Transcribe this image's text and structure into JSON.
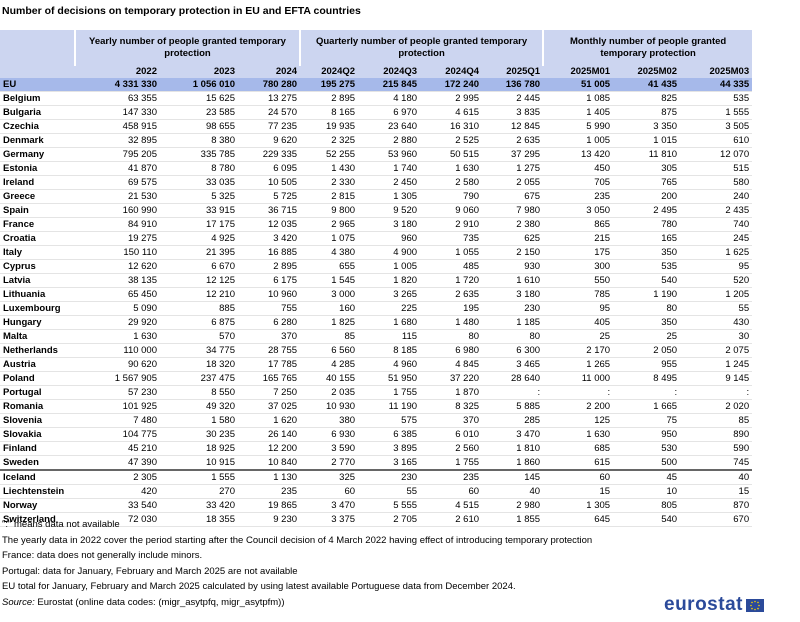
{
  "title": "Number of decisions on temporary protection in EU and EFTA countries",
  "table": {
    "groups": [
      "Yearly number of people granted temporary protection",
      "Quarterly number of people granted temporary protection",
      "Monthly number of people granted temporary protection"
    ],
    "columns": [
      "2022",
      "2023",
      "2024",
      "2024Q2",
      "2024Q3",
      "2024Q4",
      "2025Q1",
      "2025M01",
      "2025M02",
      "2025M03"
    ],
    "rows": [
      {
        "label": "EU",
        "cells": [
          "4 331 330",
          "1 056 010",
          "780 280",
          "195 275",
          "215 845",
          "172 240",
          "136 780",
          "51 005",
          "41 435",
          "44 335"
        ]
      },
      {
        "label": "Belgium",
        "cells": [
          "63 355",
          "15 625",
          "13 275",
          "2 895",
          "4 180",
          "2 995",
          "2 445",
          "1 085",
          "825",
          "535"
        ]
      },
      {
        "label": "Bulgaria",
        "cells": [
          "147 330",
          "23 585",
          "24 570",
          "8 165",
          "6 970",
          "4 615",
          "3 835",
          "1 405",
          "875",
          "1 555"
        ]
      },
      {
        "label": "Czechia",
        "cells": [
          "458 915",
          "98 655",
          "77 235",
          "19 935",
          "23 640",
          "16 310",
          "12 845",
          "5 990",
          "3 350",
          "3 505"
        ]
      },
      {
        "label": "Denmark",
        "cells": [
          "32 895",
          "8 380",
          "9 620",
          "2 325",
          "2 880",
          "2 525",
          "2 635",
          "1 005",
          "1 015",
          "610"
        ]
      },
      {
        "label": "Germany",
        "cells": [
          "795 205",
          "335 785",
          "229 335",
          "52 255",
          "53 960",
          "50 515",
          "37 295",
          "13 420",
          "11 810",
          "12 070"
        ]
      },
      {
        "label": "Estonia",
        "cells": [
          "41 870",
          "8 780",
          "6 095",
          "1 430",
          "1 740",
          "1 630",
          "1 275",
          "450",
          "305",
          "515"
        ]
      },
      {
        "label": "Ireland",
        "cells": [
          "69 575",
          "33 035",
          "10 505",
          "2 330",
          "2 450",
          "2 580",
          "2 055",
          "705",
          "765",
          "580"
        ]
      },
      {
        "label": "Greece",
        "cells": [
          "21 530",
          "5 325",
          "5 725",
          "2 815",
          "1 305",
          "790",
          "675",
          "235",
          "200",
          "240"
        ]
      },
      {
        "label": "Spain",
        "cells": [
          "160 990",
          "33 915",
          "36 715",
          "9 800",
          "9 520",
          "9 060",
          "7 980",
          "3 050",
          "2 495",
          "2 435"
        ]
      },
      {
        "label": "France",
        "cells": [
          "84 910",
          "17 175",
          "12 035",
          "2 965",
          "3 180",
          "2 910",
          "2 380",
          "865",
          "780",
          "740"
        ]
      },
      {
        "label": "Croatia",
        "cells": [
          "19 275",
          "4 925",
          "3 420",
          "1 075",
          "960",
          "735",
          "625",
          "215",
          "165",
          "245"
        ]
      },
      {
        "label": "Italy",
        "cells": [
          "150 110",
          "21 395",
          "16 885",
          "4 380",
          "4 900",
          "1 055",
          "2 150",
          "175",
          "350",
          "1 625"
        ]
      },
      {
        "label": "Cyprus",
        "cells": [
          "12 620",
          "6 670",
          "2 895",
          "655",
          "1 005",
          "485",
          "930",
          "300",
          "535",
          "95"
        ]
      },
      {
        "label": "Latvia",
        "cells": [
          "38 135",
          "12 125",
          "6 175",
          "1 545",
          "1 820",
          "1 720",
          "1 610",
          "550",
          "540",
          "520"
        ]
      },
      {
        "label": "Lithuania",
        "cells": [
          "65 450",
          "12 210",
          "10 960",
          "3 000",
          "3 265",
          "2 635",
          "3 180",
          "785",
          "1 190",
          "1 205"
        ]
      },
      {
        "label": "Luxembourg",
        "cells": [
          "5 090",
          "885",
          "755",
          "160",
          "225",
          "195",
          "230",
          "95",
          "80",
          "55"
        ]
      },
      {
        "label": "Hungary",
        "cells": [
          "29 920",
          "6 875",
          "6 280",
          "1 825",
          "1 680",
          "1 480",
          "1 185",
          "405",
          "350",
          "430"
        ]
      },
      {
        "label": "Malta",
        "cells": [
          "1 630",
          "570",
          "370",
          "85",
          "115",
          "80",
          "80",
          "25",
          "25",
          "30"
        ]
      },
      {
        "label": "Netherlands",
        "cells": [
          "110 000",
          "34 775",
          "28 755",
          "6 560",
          "8 185",
          "6 980",
          "6 300",
          "2 170",
          "2 050",
          "2 075"
        ]
      },
      {
        "label": "Austria",
        "cells": [
          "90 620",
          "18 320",
          "17 785",
          "4 285",
          "4 960",
          "4 845",
          "3 465",
          "1 265",
          "955",
          "1 245"
        ]
      },
      {
        "label": "Poland",
        "cells": [
          "1 567 905",
          "237 475",
          "165 765",
          "40 155",
          "51 950",
          "37 220",
          "28 640",
          "11 000",
          "8 495",
          "9 145"
        ]
      },
      {
        "label": "Portugal",
        "cells": [
          "57 230",
          "8 550",
          "7 250",
          "2 035",
          "1 755",
          "1 870",
          ":",
          ":",
          ":",
          ":"
        ]
      },
      {
        "label": "Romania",
        "cells": [
          "101 925",
          "49 320",
          "37 025",
          "10 930",
          "11 190",
          "8 325",
          "5 885",
          "2 200",
          "1 665",
          "2 020"
        ]
      },
      {
        "label": "Slovenia",
        "cells": [
          "7 480",
          "1 580",
          "1 620",
          "380",
          "575",
          "370",
          "285",
          "125",
          "75",
          "85"
        ]
      },
      {
        "label": "Slovakia",
        "cells": [
          "104 775",
          "30 235",
          "26 140",
          "6 930",
          "6 385",
          "6 010",
          "3 470",
          "1 630",
          "950",
          "890"
        ]
      },
      {
        "label": "Finland",
        "cells": [
          "45 210",
          "18 925",
          "12 200",
          "3 590",
          "3 895",
          "2 560",
          "1 810",
          "685",
          "530",
          "590"
        ]
      },
      {
        "label": "Sweden",
        "cells": [
          "47 390",
          "10 915",
          "10 840",
          "2 770",
          "3 165",
          "1 755",
          "1 860",
          "615",
          "500",
          "745"
        ]
      },
      {
        "label": "Iceland",
        "cells": [
          "2 305",
          "1 555",
          "1 130",
          "325",
          "230",
          "235",
          "145",
          "60",
          "45",
          "40"
        ]
      },
      {
        "label": "Liechtenstein",
        "cells": [
          "420",
          "270",
          "235",
          "60",
          "55",
          "60",
          "40",
          "15",
          "10",
          "15"
        ]
      },
      {
        "label": "Norway",
        "cells": [
          "33 540",
          "33 420",
          "19 865",
          "3 470",
          "5 555",
          "4 515",
          "2 980",
          "1 305",
          "805",
          "870"
        ]
      },
      {
        "label": "Switzerland",
        "cells": [
          "72 030",
          "18 355",
          "9 230",
          "3 375",
          "2 705",
          "2 610",
          "1 855",
          "645",
          "540",
          "670"
        ]
      }
    ]
  },
  "notes": [
    "\":\" means data not available",
    "The yearly data in 2022 cover the period starting after the Council decision of 4 March 2022 having effect of introducing temporary protection",
    "France: data does not generally include minors.",
    "Portugal: data for January, February and March 2025 are not available",
    "EU total for January, February and March 2025 calculated by using latest available Portuguese data from December 2024."
  ],
  "source": {
    "label": "Source:",
    "text": "Eurostat (online data codes: (migr_asytpfq, migr_asytpfm))"
  },
  "logo": "eurostat"
}
